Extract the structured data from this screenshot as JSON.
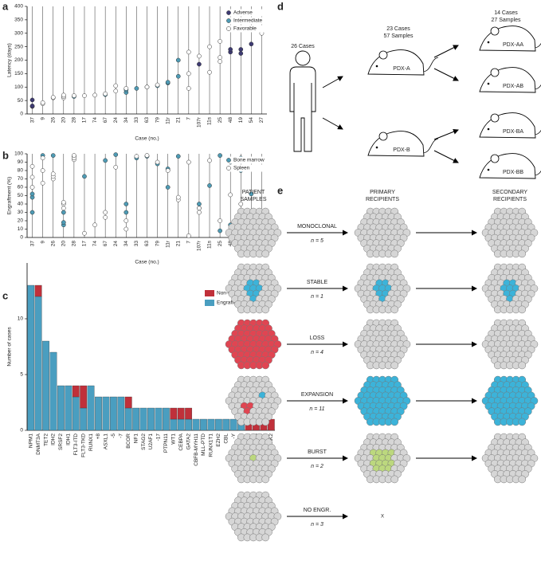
{
  "panel_labels": [
    "a",
    "b",
    "c",
    "d",
    "e"
  ],
  "chart_data": [
    {
      "type": "scatter",
      "ylabel": "Latency (days)",
      "xlabel": "Case (no.)",
      "categories": [
        "37",
        "9",
        "26",
        "20",
        "28",
        "17",
        "74",
        "67",
        "24",
        "34",
        "33",
        "63",
        "79",
        "11r",
        "21",
        "7",
        "107r",
        "11s",
        "25",
        "48",
        "19",
        "54",
        "27"
      ],
      "ylim": [
        0,
        400
      ],
      "yticks": [
        0,
        50,
        100,
        150,
        200,
        250,
        300,
        350,
        400
      ],
      "legend": "upper right",
      "series": [
        {
          "name": "Adverse",
          "color": "#3d3a72",
          "x": [
            "37",
            "37",
            "37",
            "107r",
            "48",
            "48",
            "19",
            "19",
            "54"
          ],
          "values": [
            28,
            30,
            52,
            185,
            230,
            240,
            225,
            240,
            260
          ]
        },
        {
          "name": "Intermediate",
          "color": "#4e9bb5",
          "x": [
            "28",
            "67",
            "34",
            "34",
            "33",
            "63",
            "79",
            "11r",
            "11r",
            "21",
            "21"
          ],
          "values": [
            65,
            72,
            80,
            90,
            95,
            100,
            105,
            115,
            118,
            140,
            200
          ]
        },
        {
          "name": "Favorable",
          "color": "#ffffff",
          "x": [
            "9",
            "9",
            "26",
            "26",
            "20",
            "20",
            "20",
            "28",
            "17",
            "74",
            "67",
            "24",
            "24",
            "34",
            "63",
            "79",
            "7",
            "7",
            "7",
            "107r",
            "11s",
            "11s",
            "25",
            "25",
            "25",
            "27",
            "27"
          ],
          "values": [
            38,
            42,
            60,
            62,
            60,
            65,
            70,
            68,
            68,
            70,
            75,
            85,
            105,
            95,
            100,
            108,
            95,
            150,
            230,
            215,
            155,
            250,
            195,
            210,
            270,
            300,
            375
          ]
        }
      ]
    },
    {
      "type": "scatter",
      "ylabel": "Engraftment (%)",
      "xlabel": "Case (no.)",
      "categories": [
        "37",
        "9",
        "26",
        "20",
        "28",
        "17",
        "74",
        "67",
        "24",
        "34",
        "33",
        "63",
        "79",
        "11r",
        "21",
        "7",
        "107r",
        "11s",
        "25",
        "48",
        "19",
        "54",
        "27"
      ],
      "ylim": [
        0,
        100
      ],
      "yticks": [
        0,
        10,
        20,
        30,
        40,
        50,
        60,
        70,
        80,
        90,
        100
      ],
      "legend": "upper right",
      "series": [
        {
          "name": "Bone marrow",
          "color": "#4e9bb5",
          "x": [
            "37",
            "37",
            "37",
            "9",
            "26",
            "20",
            "20",
            "20",
            "28",
            "17",
            "67",
            "24",
            "34",
            "34",
            "33",
            "63",
            "79",
            "11r",
            "11r",
            "21",
            "107r",
            "107r",
            "11s",
            "25",
            "25",
            "48",
            "48",
            "19",
            "19",
            "54",
            "27"
          ],
          "values": [
            30,
            48,
            52,
            98,
            98,
            15,
            18,
            30,
            97,
            73,
            92,
            99,
            40,
            30,
            95,
            97,
            88,
            60,
            82,
            97,
            35,
            40,
            62,
            8,
            98,
            15,
            90,
            80,
            95,
            52,
            92
          ]
        },
        {
          "name": "Spleen",
          "color": "#ffffff",
          "x": [
            "37",
            "37",
            "37",
            "9",
            "9",
            "9",
            "26",
            "26",
            "26",
            "20",
            "20",
            "20",
            "28",
            "28",
            "28",
            "17",
            "74",
            "67",
            "67",
            "24",
            "34",
            "34",
            "33",
            "63",
            "79",
            "11r",
            "21",
            "21",
            "7",
            "7",
            "107r",
            "107r",
            "11s",
            "25",
            "48",
            "19",
            "19",
            "54",
            "27"
          ],
          "values": [
            60,
            72,
            85,
            65,
            80,
            95,
            70,
            73,
            76,
            35,
            40,
            42,
            93,
            95,
            98,
            5,
            15,
            24,
            30,
            84,
            20,
            10,
            97,
            98,
            90,
            80,
            45,
            48,
            2,
            90,
            30,
            35,
            92,
            20,
            51,
            25,
            40,
            20,
            3
          ]
        }
      ]
    },
    {
      "type": "stacked-bar",
      "ylabel": "Number of cases",
      "categories": [
        "NPM1",
        "DNMT3A",
        "TET2",
        "IDH2",
        "SRSF2",
        "IDH1",
        "FLT3-ITD",
        "FLT3-TKD",
        "RUNX1",
        "+8",
        "ASXL1",
        "-5",
        "-7",
        "BCOR",
        "NF1",
        "STAG2",
        "U2AF1",
        "-17",
        "PTPN11",
        "WT1",
        "CEBPA",
        "GATA2",
        "CBFB-MYH11",
        "MLL-PTD",
        "RUNX1T1",
        "EZH2",
        "CBL",
        "-Y",
        "+13",
        "SF3B1",
        "KRAS",
        "NRAS",
        "JAK2"
      ],
      "ylim": [
        0,
        15
      ],
      "yticks": [
        0,
        5,
        10
      ],
      "legend": "upper right",
      "series": [
        {
          "name": "Engrafters",
          "color": "#4a9ec0",
          "values": [
            13,
            12,
            8,
            7,
            4,
            4,
            3,
            2,
            4,
            3,
            3,
            3,
            3,
            2,
            2,
            2,
            2,
            2,
            2,
            1,
            1,
            1,
            1,
            1,
            1,
            1,
            1,
            1,
            1,
            0,
            0,
            0,
            0
          ]
        },
        {
          "name": "Non-engrafters",
          "color": "#c0303a",
          "values": [
            0,
            1,
            0,
            0,
            0,
            0,
            1,
            2,
            0,
            0,
            0,
            0,
            0,
            1,
            0,
            0,
            0,
            0,
            0,
            1,
            1,
            1,
            0,
            0,
            0,
            0,
            0,
            0,
            0,
            1,
            1,
            1,
            1
          ]
        }
      ]
    }
  ],
  "diagram_d": {
    "patient": "26 Cases",
    "primary_cases": "23 Cases",
    "primary_samples": "57 Samples",
    "secondary_cases": "14 Cases",
    "secondary_samples": "27 Samples",
    "mice": [
      "PDX-A",
      "PDX-B",
      "PDX-AA",
      "PDX-AB",
      "PDX-BA",
      "PDX-BB"
    ]
  },
  "diagram_e": {
    "headers": [
      [
        "PATIENT",
        "SAMPLES"
      ],
      [
        "PRIMARY",
        "RECIPIENTS"
      ],
      [
        "SECONDARY",
        "RECIPIENTS"
      ]
    ],
    "rows": [
      {
        "label": "MONOCLONAL",
        "n": "n = 5"
      },
      {
        "label": "STABLE",
        "n": "n = 1"
      },
      {
        "label": "LOSS",
        "n": "n = 4"
      },
      {
        "label": "EXPANSION",
        "n": "n = 11"
      },
      {
        "label": "BURST",
        "n": "n = 2"
      },
      {
        "label": "NO ENGR.",
        "n": "n = 3"
      }
    ],
    "no_engraftment_mark": "X"
  }
}
